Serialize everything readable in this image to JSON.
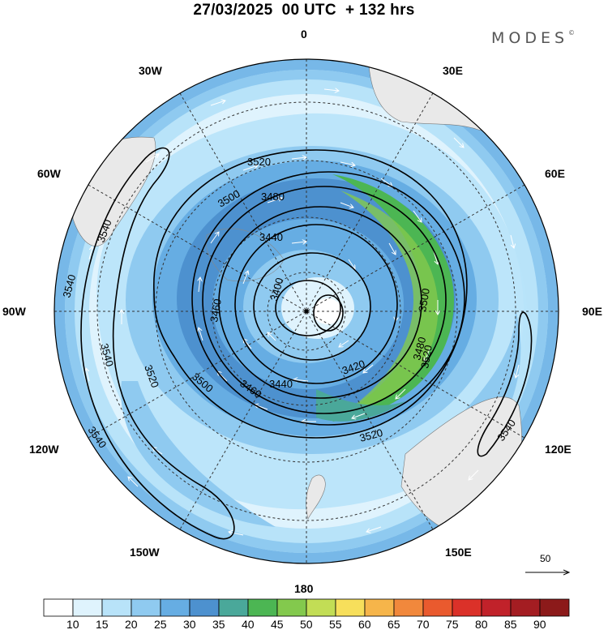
{
  "header": {
    "title": "27/03/2025  00 UTC  + 132 hrs",
    "brand": "MODES",
    "brand_mark": "©"
  },
  "longitude_labels": {
    "top": "0",
    "bottom": "180",
    "left": "90W",
    "right": "90E",
    "upper_left_30": "30W",
    "upper_right_30": "30E",
    "upper_left_60": "60W",
    "upper_right_60": "60E",
    "lower_left_120": "120W",
    "lower_right_120": "120E",
    "lower_left_150": "150W",
    "lower_right_150": "150E"
  },
  "contours": {
    "labels": [
      "3520",
      "3500",
      "3480",
      "3440",
      "3400",
      "3460",
      "3540",
      "3420",
      "3520",
      "3480",
      "3500",
      "3460",
      "3440",
      "3500",
      "3520",
      "3540",
      "3540",
      "3520",
      "3540",
      "3540"
    ]
  },
  "vector_reference": {
    "value": "50"
  },
  "colorbar": {
    "ticks": [
      "10",
      "15",
      "20",
      "25",
      "30",
      "35",
      "40",
      "45",
      "50",
      "55",
      "60",
      "65",
      "70",
      "75",
      "80",
      "85",
      "90"
    ],
    "colors": [
      "#ffffff",
      "#dff3fd",
      "#b8e3f9",
      "#8fcaf0",
      "#66ade3",
      "#4d91cf",
      "#4aa89a",
      "#4cb653",
      "#83c94d",
      "#c2dd55",
      "#f7df5b",
      "#f6b54a",
      "#f1883c",
      "#ea5a2e",
      "#db3129",
      "#c1222a",
      "#a41d22",
      "#8c1a1a"
    ]
  }
}
